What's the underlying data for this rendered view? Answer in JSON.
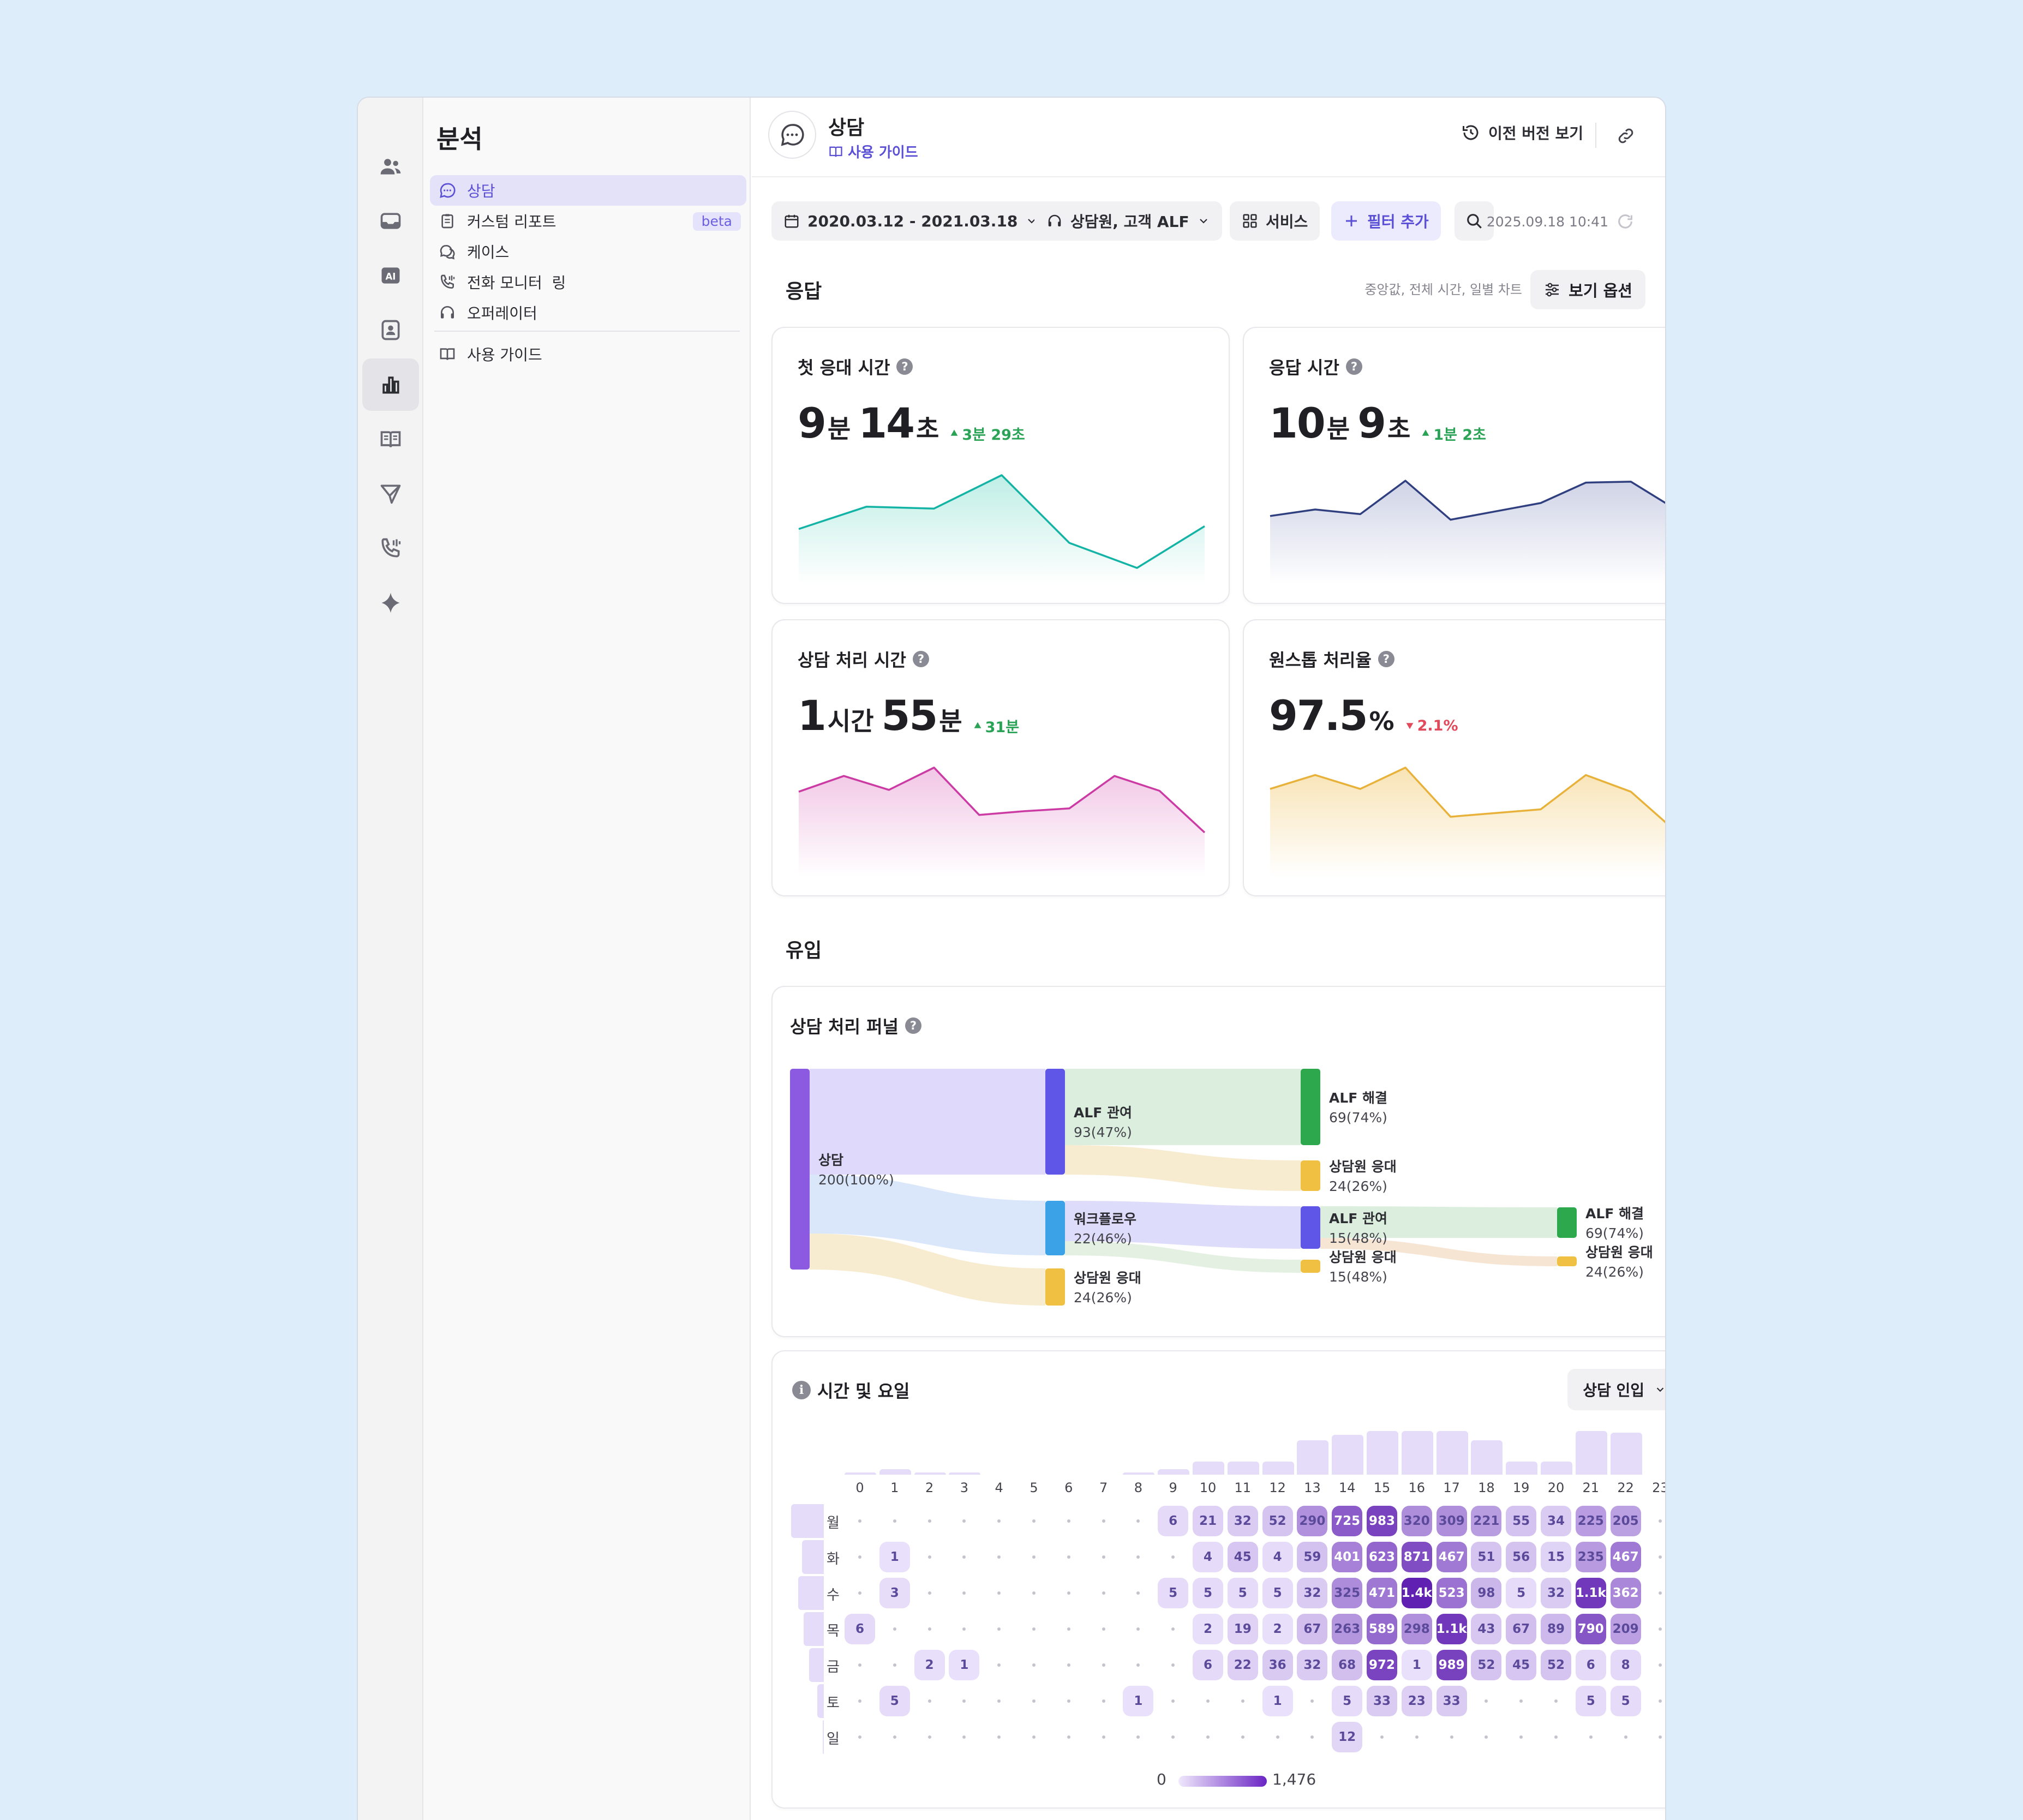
{
  "sidebar": {
    "title": "분석",
    "items": [
      {
        "label": "상담",
        "icon": "chat-icon",
        "active": true
      },
      {
        "label": "커스텀 리포트",
        "icon": "clipboard-icon",
        "badge": "beta"
      },
      {
        "label": "케이스",
        "icon": "cases-icon"
      },
      {
        "label": "전화 모니터  링",
        "icon": "phone-icon"
      },
      {
        "label": "오퍼레이터",
        "icon": "headset-icon"
      }
    ],
    "guide": {
      "label": "사용 가이드",
      "icon": "book-icon"
    }
  },
  "header": {
    "title": "상담",
    "guide_link": "사용 가이드",
    "prev_version": "이전 버전 보기"
  },
  "filters": {
    "date_range": "2020.03.12 - 2021.03.18",
    "participants": "상담원, 고객 ALF",
    "service": "서비스",
    "add_filter": "필터 추가",
    "timestamp": "2025.09.18 10:41"
  },
  "response": {
    "title": "응답",
    "view_note": "중앙값, 전체 시간, 일별 차트",
    "view_button": "보기 옵션",
    "cards": [
      {
        "title": "첫 응대 시간",
        "parts": [
          {
            "v": "9",
            "u": "분"
          },
          {
            "v": "14",
            "u": "초"
          }
        ],
        "delta": "3분 29초",
        "dir": "up",
        "color": "#13b3a5",
        "fill": "#bfeee6",
        "series": [
          0.42,
          0.66,
          0.64,
          1.0,
          0.27,
          0.0,
          0.45
        ]
      },
      {
        "title": "응답 시간",
        "parts": [
          {
            "v": "10",
            "u": "분"
          },
          {
            "v": "9",
            "u": "초"
          }
        ],
        "delta": "1분 2초",
        "dir": "up",
        "color": "#2f3f7f",
        "fill": "#cfd3e6",
        "series": [
          0.56,
          0.63,
          0.58,
          0.94,
          0.52,
          0.61,
          0.7,
          0.92,
          0.93,
          0.63
        ]
      },
      {
        "title": "상담 처리 시간",
        "parts": [
          {
            "v": "1",
            "u": "시간"
          },
          {
            "v": "55",
            "u": "분"
          }
        ],
        "delta": "31분",
        "dir": "up",
        "color": "#cc3aa4",
        "fill": "#f1c6e5",
        "series": [
          0.74,
          0.91,
          0.76,
          1.0,
          0.49,
          0.53,
          0.56,
          0.91,
          0.75,
          0.3
        ]
      },
      {
        "title": "원스톱 처리율",
        "parts": [
          {
            "v": "97.5",
            "u": "%"
          }
        ],
        "delta": "2.1%",
        "dir": "down",
        "color": "#e8b23a",
        "fill": "#f8e3b4",
        "series": [
          0.77,
          0.92,
          0.77,
          1.0,
          0.47,
          0.51,
          0.55,
          0.92,
          0.74,
          0.31
        ]
      }
    ]
  },
  "inflow": {
    "title": "유입",
    "funnel": {
      "title": "상담 처리 퍼널",
      "nodes": [
        {
          "id": "n0",
          "name": "상담",
          "value": "200(100%)",
          "color": "#8b5ae0"
        },
        {
          "id": "n1",
          "name": "ALF 관여",
          "value": "93(47%)",
          "color": "#5f55e6"
        },
        {
          "id": "n2",
          "name": "워크플로우",
          "value": "22(46%)",
          "color": "#3ba2e8"
        },
        {
          "id": "n3",
          "name": "상담원 응대",
          "value": "24(26%)",
          "color": "#f0c043"
        },
        {
          "id": "n4",
          "name": "ALF 해결",
          "value": "69(74%)",
          "color": "#2ea84c"
        },
        {
          "id": "n5",
          "name": "상담원 응대",
          "value": "24(26%)",
          "color": "#f0c043"
        },
        {
          "id": "n6",
          "name": "ALF 관여",
          "value": "15(48%)",
          "color": "#5f55e6"
        },
        {
          "id": "n7",
          "name": "상담원 응대",
          "value": "15(48%)",
          "color": "#f0c043"
        },
        {
          "id": "n8",
          "name": "ALF 해결",
          "value": "69(74%)",
          "color": "#2ea84c"
        },
        {
          "id": "n9",
          "name": "상담원 응대",
          "value": "24(26%)",
          "color": "#f0c043"
        }
      ]
    },
    "heatmap": {
      "title": "시간 및 요일",
      "dropdown": "상담 인입",
      "hours": [
        "0",
        "1",
        "2",
        "3",
        "4",
        "5",
        "6",
        "7",
        "8",
        "9",
        "10",
        "11",
        "12",
        "13",
        "14",
        "15",
        "16",
        "17",
        "18",
        "19",
        "20",
        "21",
        "22",
        "23"
      ],
      "days": [
        "월",
        "화",
        "수",
        "목",
        "금",
        "토",
        "일"
      ],
      "hour_totals": [
        1,
        3,
        1,
        1,
        0,
        0,
        0,
        0,
        1,
        3,
        7,
        7,
        7,
        18,
        21,
        23,
        23,
        23,
        18,
        7,
        7,
        23,
        22,
        0
      ],
      "day_totals": [
        24,
        16,
        19,
        15,
        11,
        5,
        1
      ],
      "grid": [
        [
          "",
          "",
          "",
          "",
          "",
          "",
          "",
          "",
          "",
          "6",
          "21",
          "32",
          "52",
          "290",
          "725",
          "983",
          "320",
          "309",
          "221",
          "55",
          "34",
          "225",
          "205",
          ""
        ],
        [
          "",
          "1",
          "",
          "",
          "",
          "",
          "",
          "",
          "",
          "",
          "4",
          "45",
          "4",
          "59",
          "401",
          "623",
          "871",
          "467",
          "51",
          "56",
          "15",
          "235",
          "467",
          ""
        ],
        [
          "",
          "3",
          "",
          "",
          "",
          "",
          "",
          "",
          "",
          "5",
          "5",
          "5",
          "5",
          "32",
          "325",
          "471",
          "1.4k",
          "523",
          "98",
          "5",
          "32",
          "1.1k",
          "362",
          ""
        ],
        [
          "6",
          "",
          "",
          "",
          "",
          "",
          "",
          "",
          "",
          "",
          "2",
          "19",
          "2",
          "67",
          "263",
          "589",
          "298",
          "1.1k",
          "43",
          "67",
          "89",
          "790",
          "209",
          ""
        ],
        [
          "",
          "",
          "2",
          "1",
          "",
          "",
          "",
          "",
          "",
          "",
          "6",
          "22",
          "36",
          "32",
          "68",
          "972",
          "1",
          "989",
          "52",
          "45",
          "52",
          "6",
          "8",
          ""
        ],
        [
          "",
          "5",
          "",
          "",
          "",
          "",
          "",
          "",
          "1",
          "",
          "",
          "",
          "1",
          "",
          "5",
          "33",
          "23",
          "33",
          "",
          "",
          "",
          "5",
          "5",
          ""
        ],
        [
          "",
          "",
          "",
          "",
          "",
          "",
          "",
          "",
          "",
          "",
          "",
          "",
          "",
          "",
          "12",
          "",
          "",
          "",
          "",
          "",
          "",
          "",
          "",
          ""
        ]
      ],
      "legend_min": "0",
      "legend_max": "1,476"
    }
  }
}
